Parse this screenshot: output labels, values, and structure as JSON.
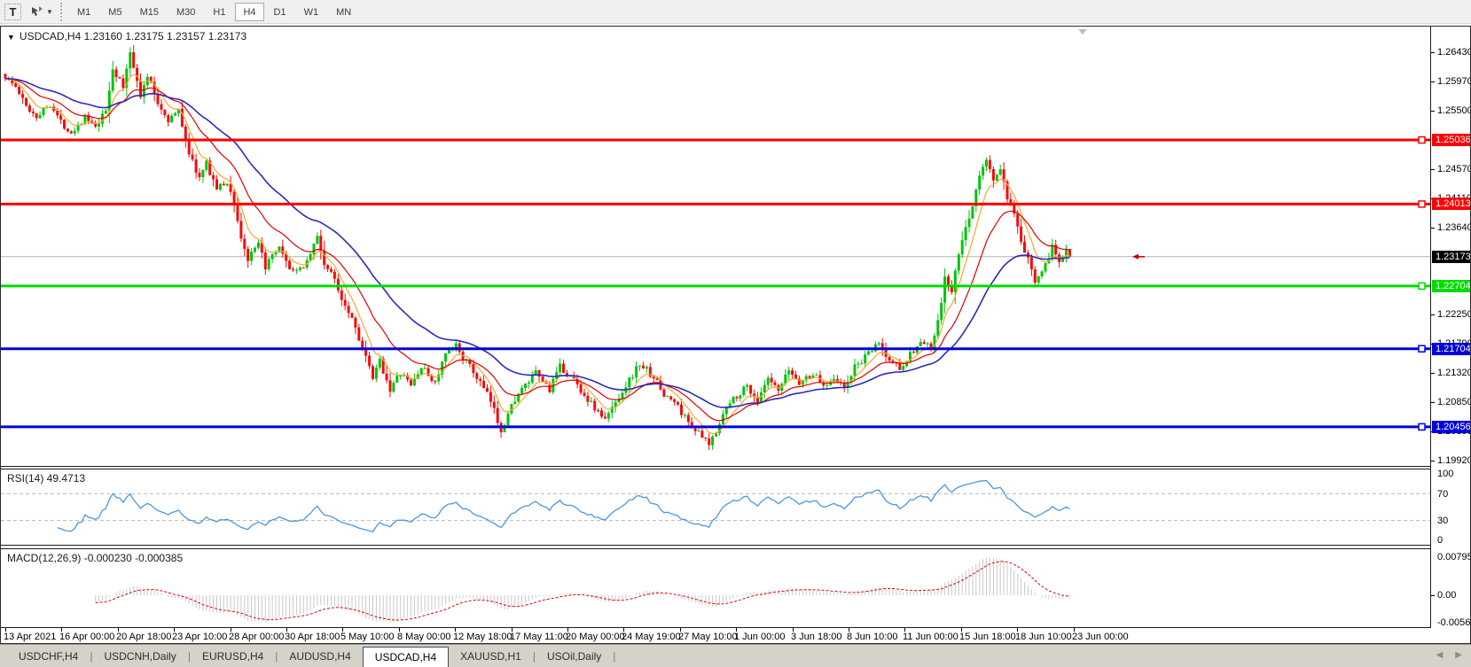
{
  "toolbar": {
    "text_tool_label": "T",
    "timeframes": [
      "M1",
      "M5",
      "M15",
      "M30",
      "H1",
      "H4",
      "D1",
      "W1",
      "MN"
    ],
    "active_timeframe": "H4"
  },
  "chart": {
    "title": "USDCAD,H4 1.23160 1.23175 1.23157 1.23173"
  },
  "indicators": {
    "rsi_label": "RSI(14) 49.4713",
    "macd_label": "MACD(12,26,9) -0.000230 -0.000385"
  },
  "tabs": {
    "items": [
      "USDCHF,H4",
      "USDCNH,Daily",
      "EURUSD,H4",
      "AUDUSD,H4",
      "USDCAD,H4",
      "XAUUSD,H1",
      "USOil,Daily"
    ],
    "active": "USDCAD,H4",
    "scroll_left": "◀",
    "scroll_right": "▶"
  },
  "chart_data": {
    "type": "candlestick",
    "symbol": "USDCAD",
    "timeframe": "H4",
    "ohlc_display": {
      "open": 1.2316,
      "high": 1.23175,
      "low": 1.23157,
      "close": 1.23173
    },
    "current_price": 1.23173,
    "ylim": [
      1.19833,
      1.26846
    ],
    "y_ticks": [
      1.2643,
      1.2597,
      1.255,
      1.2457,
      1.2411,
      1.2364,
      1.2225,
      1.2179,
      1.2132,
      1.2085,
      1.2039,
      1.1992
    ],
    "x_labels": [
      "13 Apr 2021",
      "16 Apr 00:00",
      "20 Apr 18:00",
      "23 Apr 10:00",
      "28 Apr 00:00",
      "30 Apr 18:00",
      "5 May 10:00",
      "8 May 00:00",
      "12 May 18:00",
      "17 May 11:00",
      "20 May 00:00",
      "24 May 19:00",
      "27 May 10:00",
      "1 Jun 00:00",
      "3 Jun 18:00",
      "8 Jun 10:00",
      "11 Jun 00:00",
      "15 Jun 18:00",
      "18 Jun 10:00",
      "23 Jun 00:00"
    ],
    "n_candles": 308,
    "x0": 5,
    "dx": 3.91,
    "price_path_anchors": [
      [
        0,
        1.2605
      ],
      [
        3,
        1.2588
      ],
      [
        6,
        1.2557
      ],
      [
        9,
        1.2542
      ],
      [
        13,
        1.2562
      ],
      [
        16,
        1.2532
      ],
      [
        19,
        1.2516
      ],
      [
        23,
        1.254
      ],
      [
        26,
        1.2521
      ],
      [
        29,
        1.255
      ],
      [
        31,
        1.2618
      ],
      [
        34,
        1.2587
      ],
      [
        36,
        1.2644
      ],
      [
        38,
        1.2602
      ],
      [
        39,
        1.2571
      ],
      [
        41,
        1.2607
      ],
      [
        44,
        1.2562
      ],
      [
        47,
        1.2536
      ],
      [
        50,
        1.255
      ],
      [
        53,
        1.2482
      ],
      [
        56,
        1.2442
      ],
      [
        58,
        1.2466
      ],
      [
        61,
        1.2426
      ],
      [
        64,
        1.2436
      ],
      [
        66,
        1.2402
      ],
      [
        68,
        1.2347
      ],
      [
        70,
        1.2312
      ],
      [
        73,
        1.2336
      ],
      [
        75,
        1.2302
      ],
      [
        79,
        1.233
      ],
      [
        81,
        1.2306
      ],
      [
        84,
        1.2291
      ],
      [
        87,
        1.2311
      ],
      [
        90,
        1.2349
      ],
      [
        92,
        1.2306
      ],
      [
        95,
        1.2281
      ],
      [
        97,
        1.2252
      ],
      [
        100,
        1.2221
      ],
      [
        103,
        1.2172
      ],
      [
        106,
        1.2122
      ],
      [
        108,
        1.2151
      ],
      [
        111,
        1.2106
      ],
      [
        114,
        1.2131
      ],
      [
        117,
        1.2112
      ],
      [
        120,
        1.2141
      ],
      [
        124,
        1.2116
      ],
      [
        127,
        1.2161
      ],
      [
        130,
        1.2176
      ],
      [
        134,
        1.2141
      ],
      [
        137,
        1.2116
      ],
      [
        140,
        1.2086
      ],
      [
        143,
        1.2041
      ],
      [
        147,
        1.2091
      ],
      [
        150,
        1.2111
      ],
      [
        153,
        1.2131
      ],
      [
        157,
        1.2106
      ],
      [
        160,
        1.2141
      ],
      [
        164,
        1.2121
      ],
      [
        167,
        1.2096
      ],
      [
        170,
        1.2076
      ],
      [
        173,
        1.2056
      ],
      [
        176,
        1.2086
      ],
      [
        180,
        1.2121
      ],
      [
        183,
        1.2146
      ],
      [
        187,
        1.2126
      ],
      [
        190,
        1.2096
      ],
      [
        193,
        1.2086
      ],
      [
        196,
        1.2061
      ],
      [
        199,
        1.2041
      ],
      [
        203,
        1.2016
      ],
      [
        207,
        1.2066
      ],
      [
        210,
        1.2091
      ],
      [
        214,
        1.2111
      ],
      [
        217,
        1.2086
      ],
      [
        220,
        1.2121
      ],
      [
        223,
        1.2101
      ],
      [
        226,
        1.2136
      ],
      [
        229,
        1.2116
      ],
      [
        233,
        1.2131
      ],
      [
        236,
        1.2111
      ],
      [
        239,
        1.2126
      ],
      [
        242,
        1.2106
      ],
      [
        245,
        1.2141
      ],
      [
        249,
        1.2161
      ],
      [
        252,
        1.2181
      ],
      [
        254,
        1.2156
      ],
      [
        258,
        1.2141
      ],
      [
        261,
        1.2161
      ],
      [
        264,
        1.2181
      ],
      [
        267,
        1.2171
      ],
      [
        269,
        1.2211
      ],
      [
        271,
        1.2281
      ],
      [
        273,
        1.2261
      ],
      [
        275,
        1.2321
      ],
      [
        277,
        1.2361
      ],
      [
        279,
        1.2401
      ],
      [
        281,
        1.2446
      ],
      [
        283,
        1.2471
      ],
      [
        285,
        1.2441
      ],
      [
        287,
        1.2456
      ],
      [
        289,
        1.2411
      ],
      [
        291,
        1.2381
      ],
      [
        293,
        1.2341
      ],
      [
        295,
        1.2311
      ],
      [
        297,
        1.2281
      ],
      [
        300,
        1.2306
      ],
      [
        302,
        1.2331
      ],
      [
        304,
        1.2311
      ],
      [
        306,
        1.2331
      ],
      [
        307,
        1.23173
      ]
    ],
    "hlines": [
      {
        "price": 1.25036,
        "color": "#ff0000"
      },
      {
        "price": 1.24013,
        "color": "#ff0000"
      },
      {
        "price": 1.22704,
        "color": "#00dc00"
      },
      {
        "price": 1.21704,
        "color": "#0000e0"
      },
      {
        "price": 1.20456,
        "color": "#0000e0"
      }
    ],
    "moving_averages": [
      {
        "period": 7,
        "type": "ema",
        "color": "#f7a828"
      },
      {
        "period": 18,
        "type": "ema",
        "color": "#e00000"
      },
      {
        "period": 40,
        "type": "ema",
        "color": "#2b2bb8"
      }
    ],
    "rsi": {
      "period": 14,
      "value": 49.4713,
      "levels": [
        70,
        30
      ],
      "scale_ticks": [
        100,
        70,
        30,
        0
      ],
      "color": "#4a97dd"
    },
    "macd": {
      "fast": 12,
      "slow": 26,
      "signal": 9,
      "macd_value": -0.00023,
      "signal_value": -0.000385,
      "scale_labels": [
        "0.007959",
        "0.00",
        "-0.005663"
      ],
      "scale_values": [
        0.007959,
        0,
        -0.005663
      ],
      "bar_color": "#c9c9c9",
      "signal_color": "#e00000"
    },
    "colors": {
      "up": "#00c40a",
      "down": "#f40b0b",
      "current_line": "#b4b4b4",
      "current_label_bg": "#000000",
      "level_dash": "#bdbdbd",
      "shift_marker": "#bdbdbd",
      "price_pointer": "#c00000"
    }
  }
}
